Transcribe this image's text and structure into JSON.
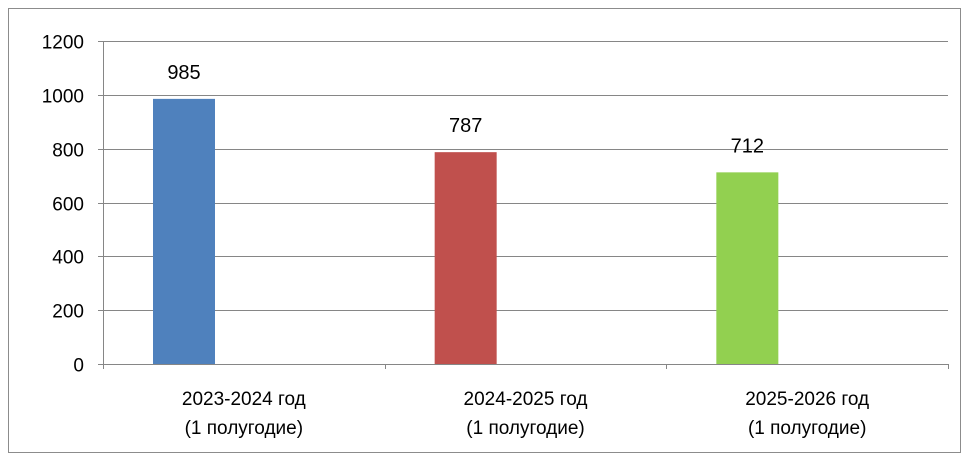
{
  "chart_data": {
    "type": "bar",
    "categories": [
      [
        "2023-2024 год",
        "(1 полугодие)"
      ],
      [
        "2024-2025 год",
        "(1 полугодие)"
      ],
      [
        "2025-2026 год",
        "(1 полугодие)"
      ]
    ],
    "values": [
      985,
      787,
      712
    ],
    "data_labels": [
      "985",
      "787",
      "712"
    ],
    "bar_colors": [
      "#4F81BD",
      "#C0504D",
      "#92D050"
    ],
    "title": "",
    "xlabel": "",
    "ylabel": "",
    "ylim": [
      0,
      1200
    ],
    "yticks": [
      0,
      200,
      400,
      600,
      800,
      1000,
      1200
    ],
    "grid": true,
    "legend": "none"
  }
}
